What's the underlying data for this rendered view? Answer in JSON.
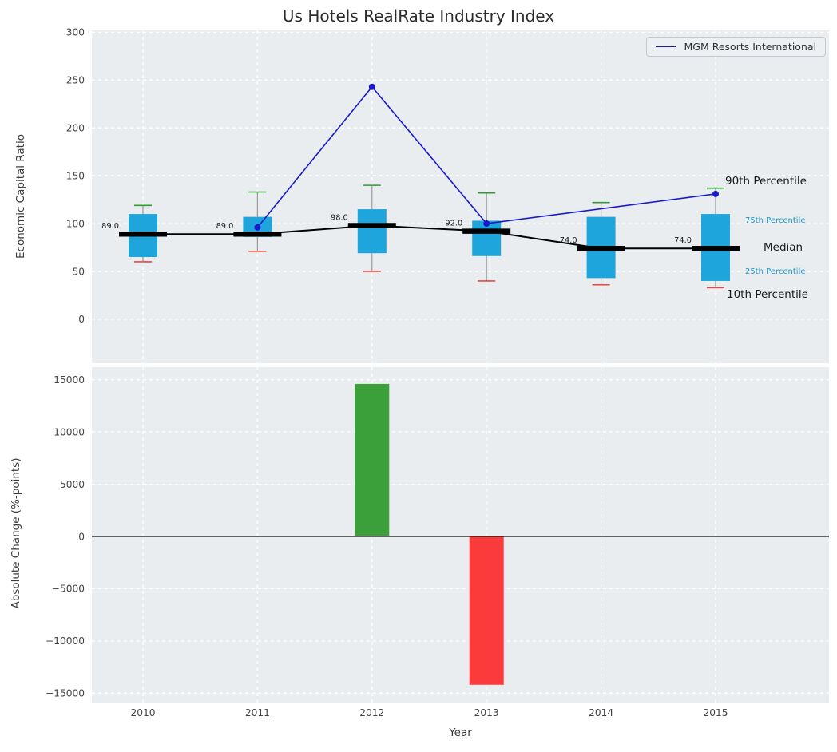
{
  "page": {
    "title": "Us Hotels RealRate Industry Index"
  },
  "legend": {
    "series_label": "MGM Resorts International"
  },
  "labels": {
    "top_ylabel": "Economic Capital Ratio",
    "bottom_ylabel": "Absolute Change (%-points)",
    "xlabel": "Year",
    "p90": "90th Percentile",
    "p75": "75th Percentile",
    "median": "Median",
    "p25": "25th Percentile",
    "p10": "10th Percentile"
  },
  "chart_data": [
    {
      "type": "boxplot",
      "title": "Us Hotels RealRate Industry Index",
      "ylabel": "Economic Capital Ratio",
      "ylim": [
        -46,
        302
      ],
      "yticks": [
        0,
        50,
        100,
        150,
        200,
        250,
        300
      ],
      "categories": [
        2010,
        2011,
        2012,
        2013,
        2014,
        2015
      ],
      "boxes": [
        {
          "year": 2010,
          "p10": 60,
          "p25": 65,
          "median": 89,
          "p75": 110,
          "p90": 119,
          "median_label": "89.0"
        },
        {
          "year": 2011,
          "p10": 71,
          "p25": 86,
          "median": 89,
          "p75": 107,
          "p90": 133,
          "median_label": "89.0"
        },
        {
          "year": 2012,
          "p10": 50,
          "p25": 69,
          "median": 98,
          "p75": 115,
          "p90": 140,
          "median_label": "98.0"
        },
        {
          "year": 2013,
          "p10": 40,
          "p25": 66,
          "median": 92,
          "p75": 103,
          "p90": 132,
          "median_label": "92.0"
        },
        {
          "year": 2014,
          "p10": 36,
          "p25": 43,
          "median": 74,
          "p75": 107,
          "p90": 122,
          "median_label": "74.0"
        },
        {
          "year": 2015,
          "p10": 33,
          "p25": 40,
          "median": 74,
          "p75": 110,
          "p90": 137,
          "median_label": "74.0"
        }
      ],
      "line_series": {
        "name": "MGM Resorts International",
        "x": [
          2011,
          2012,
          2013,
          2015
        ],
        "y": [
          96,
          243,
          100,
          131
        ]
      },
      "colors": {
        "box_fill": "#1ea5dc",
        "median": "#000000",
        "cap_top": "#2ca02c",
        "cap_bottom": "#e8473f",
        "whisker": "#999999",
        "line": "#1a1acd",
        "bg": "#e9edf0",
        "grid": "#ffffff",
        "annotation_blue": "#2095c5"
      }
    },
    {
      "type": "bar",
      "ylabel": "Absolute Change (%-points)",
      "xlabel": "Year",
      "ylim": [
        -15900,
        16200
      ],
      "yticks": [
        -15000,
        -10000,
        -5000,
        0,
        5000,
        10000,
        15000
      ],
      "categories": [
        2010,
        2011,
        2012,
        2013,
        2014,
        2015
      ],
      "values": [
        null,
        null,
        14600,
        -14200,
        null,
        null
      ],
      "bar_colors": [
        null,
        null,
        "#3ca03a",
        "#fb3b3b",
        null,
        null
      ]
    }
  ]
}
